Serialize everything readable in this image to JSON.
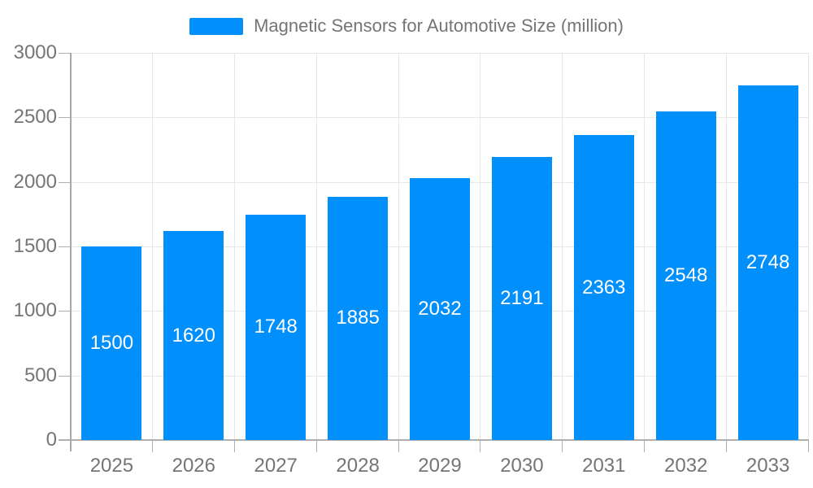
{
  "legend": {
    "label": "Magnetic Sensors for Automotive Size (million)"
  },
  "colors": {
    "bar": "#008FFB",
    "axis_text": "#757575",
    "grid_line": "#E7E7E7",
    "axis_line": "#AFAFAF",
    "value_label": "#FFFFFF",
    "background": "#FFFFFF"
  },
  "chart_data": {
    "type": "bar",
    "title": "Magnetic Sensors for Automotive Size (million)",
    "categories": [
      "2025",
      "2026",
      "2027",
      "2028",
      "2029",
      "2030",
      "2031",
      "2032",
      "2033"
    ],
    "series": [
      {
        "name": "Magnetic Sensors for Automotive Size (million)",
        "values": [
          1500,
          1620,
          1748,
          1885,
          2032,
          2191,
          2363,
          2548,
          2748
        ]
      }
    ],
    "xlabel": "",
    "ylabel": "",
    "ylim": [
      0,
      3000
    ],
    "yticks": [
      0,
      500,
      1000,
      1500,
      2000,
      2500,
      3000
    ],
    "grid": true,
    "legend_position": "top",
    "value_labels_shown": true,
    "value_label_position": "center-of-bar"
  }
}
